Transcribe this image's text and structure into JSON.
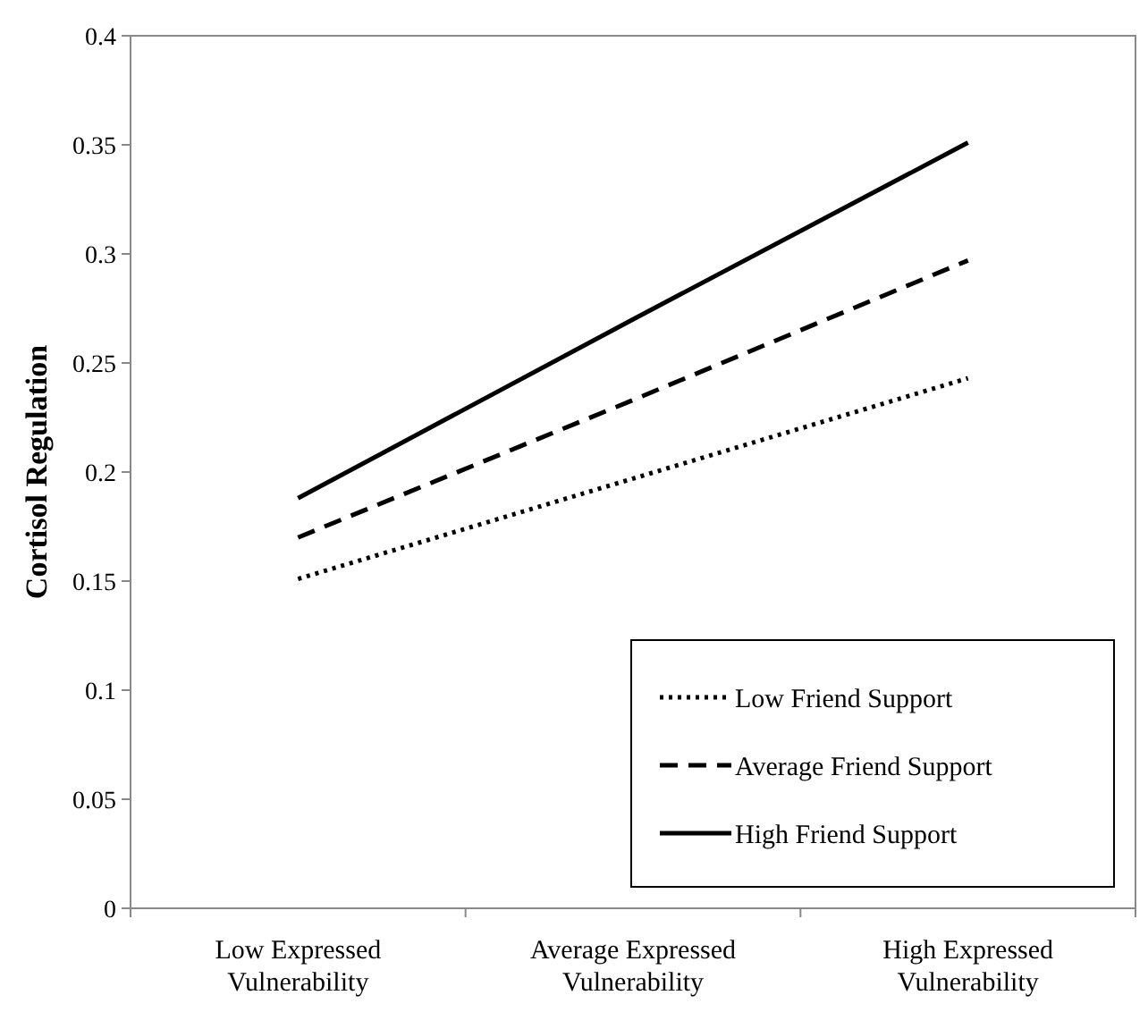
{
  "chart_data": {
    "type": "line",
    "ylabel": "Cortisol Regulation",
    "categories": [
      "Low Expressed Vulnerability",
      "Average Expressed Vulnerability",
      "High Expressed Vulnerability"
    ],
    "series": [
      {
        "name": "Low Friend Support",
        "color": "#000000",
        "line_style": "dotted",
        "values": [
          0.151,
          0.197,
          0.243
        ]
      },
      {
        "name": "Average Friend Support",
        "color": "#000000",
        "line_style": "dashed",
        "values": [
          0.17,
          0.233,
          0.297
        ]
      },
      {
        "name": "High Friend Support",
        "color": "#000000",
        "line_style": "solid",
        "values": [
          0.188,
          0.27,
          0.351
        ]
      }
    ],
    "ylim": [
      0,
      0.4
    ],
    "yticks": [
      0,
      0.05,
      0.1,
      0.15,
      0.2,
      0.25,
      0.3,
      0.35,
      0.4
    ],
    "grid": false,
    "legend": "bottom right",
    "marker": "none"
  }
}
